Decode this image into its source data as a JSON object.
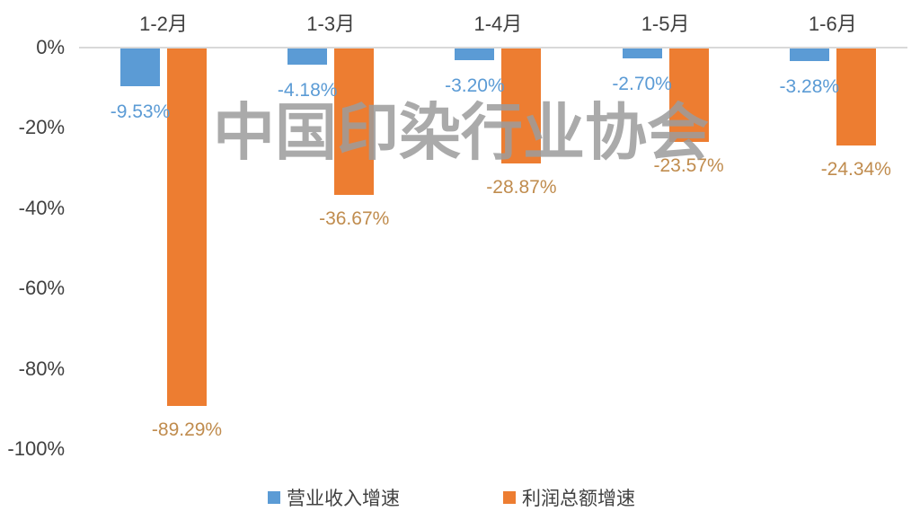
{
  "watermark": {
    "text": "中国印染行业协会",
    "color": "#9c9c9c",
    "opacity": 0.85
  },
  "axis": {
    "line_color": "#d9d9d9",
    "text_color": "#404040"
  },
  "chart_data": {
    "type": "bar",
    "title": "",
    "xlabel": "",
    "ylabel": "",
    "categories": [
      "1-2月",
      "1-3月",
      "1-4月",
      "1-5月",
      "1-6月"
    ],
    "series": [
      {
        "name": "营业收入增速",
        "color": "#5b9bd5",
        "label_color": "#5b9bd5",
        "values": [
          -9.53,
          -4.18,
          -3.2,
          -2.7,
          -3.28
        ],
        "labels": [
          "-9.53%",
          "-4.18%",
          "-3.20%",
          "-2.70%",
          "-3.28%"
        ]
      },
      {
        "name": "利润总额增速",
        "color": "#ed7d31",
        "label_color": "#c08c4e",
        "values": [
          -89.29,
          -36.67,
          -28.87,
          -23.57,
          -24.34
        ],
        "labels": [
          "-89.29%",
          "-36.67%",
          "-28.87%",
          "-23.57%",
          "-24.34%"
        ]
      }
    ],
    "y_axis": {
      "min": -100,
      "max": 0,
      "ticks": [
        "0%",
        "-20%",
        "-40%",
        "-60%",
        "-80%",
        "-100%"
      ],
      "tick_values": [
        0,
        -20,
        -40,
        -60,
        -80,
        -100
      ]
    },
    "grid": false,
    "legend_position": "bottom",
    "legend": [
      {
        "label": "营业收入增速",
        "color": "#5b9bd5"
      },
      {
        "label": "利润总额增速",
        "color": "#ed7d31"
      }
    ]
  }
}
